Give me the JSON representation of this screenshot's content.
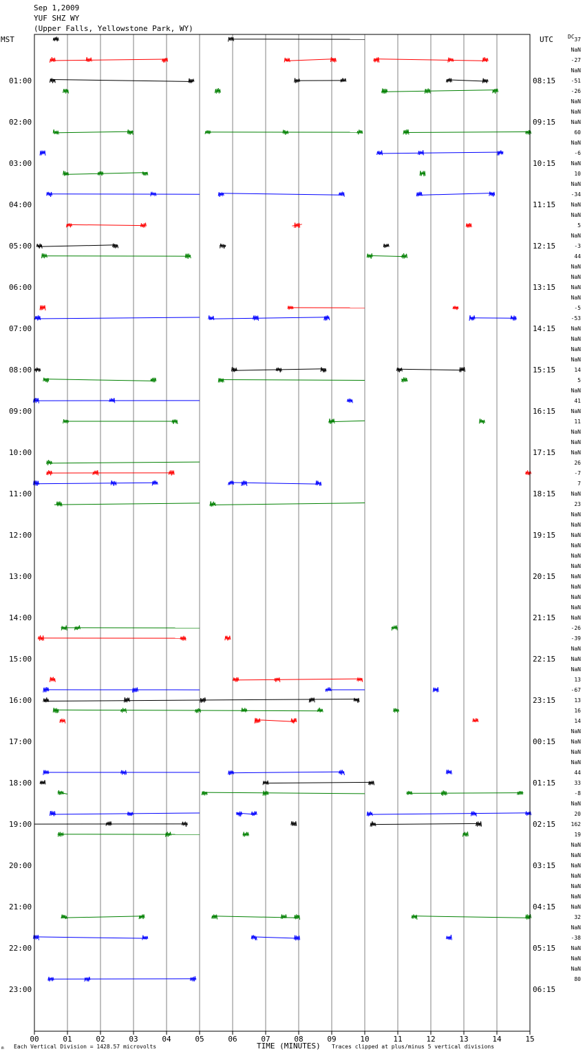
{
  "header": {
    "date": "Sep 1,2009",
    "station": "YUF SHZ WY",
    "location": "(Upper Falls, Yellowstone Park, WY)"
  },
  "labels": {
    "left_unit": "MST",
    "right_unit": "UTC",
    "dc": "DC",
    "xlabel": "TIME (MINUTES)",
    "scale_note": "Each Vertical Division = 1428.57 microvolts",
    "clip_note": "Traces clipped at plus/minus 5 vertical divisions"
  },
  "chart_data": {
    "type": "line",
    "title": "",
    "xlabel": "TIME (MINUTES)",
    "ylabel": "MST",
    "xlim": [
      0,
      15
    ],
    "grid": "vertical lines every minute",
    "x_ticks": [
      "00",
      "01",
      "02",
      "03",
      "04",
      "05",
      "06",
      "07",
      "08",
      "09",
      "10",
      "11",
      "12",
      "13",
      "14",
      "15"
    ],
    "left_ticks": [
      "01:00",
      "02:00",
      "03:00",
      "04:00",
      "05:00",
      "06:00",
      "07:00",
      "08:00",
      "09:00",
      "10:00",
      "11:00",
      "12:00",
      "13:00",
      "14:00",
      "15:00",
      "16:00",
      "17:00",
      "18:00",
      "19:00",
      "20:00",
      "21:00",
      "22:00",
      "23:00"
    ],
    "right_ticks": [
      "08:15",
      "09:15",
      "10:15",
      "11:15",
      "12:15",
      "13:15",
      "14:15",
      "15:15",
      "16:15",
      "17:15",
      "18:15",
      "19:15",
      "20:15",
      "21:15",
      "22:15",
      "23:15",
      "00:15",
      "01:15",
      "02:15",
      "03:15",
      "04:15",
      "05:15",
      "06:15"
    ],
    "row_colors": [
      "#000000",
      "#008000",
      "#ff0000",
      "#0000ff"
    ],
    "dc_offsets": [
      "37",
      "NaN",
      "-27",
      "NaN",
      "-51",
      "-26",
      "NaN",
      "NaN",
      "NaN",
      "60",
      "NaN",
      "-6",
      "NaN",
      "10",
      "NaN",
      "-34",
      "NaN",
      "NaN",
      "5",
      "NaN",
      "-3",
      "44",
      "NaN",
      "NaN",
      "NaN",
      "NaN",
      "-5",
      "-53",
      "NaN",
      "NaN",
      "NaN",
      "NaN",
      "14",
      "5",
      "NaN",
      "41",
      "NaN",
      "11",
      "NaN",
      "NaN",
      "NaN",
      "26",
      "-7",
      "7",
      "NaN",
      "23",
      "NaN",
      "NaN",
      "NaN",
      "NaN",
      "NaN",
      "NaN",
      "NaN",
      "NaN",
      "NaN",
      "NaN",
      "NaN",
      "-26",
      "-39",
      "NaN",
      "NaN",
      "NaN",
      "13",
      "-67",
      "13",
      "16",
      "14",
      "NaN",
      "NaN",
      "NaN",
      "NaN",
      "44",
      "33",
      "-8",
      "NaN",
      "20",
      "162",
      "19",
      "NaN",
      "NaN",
      "NaN",
      "NaN",
      "NaN",
      "NaN",
      "NaN",
      "32",
      "NaN",
      "-38",
      "NaN",
      "NaN",
      "NaN",
      "80"
    ],
    "traces": [
      {
        "row": 0,
        "segments": [
          [
            0.6,
            0.7
          ],
          [
            6.0,
            10.0
          ]
        ],
        "bursts": [
          0.65,
          5.95
        ]
      },
      {
        "row": 2,
        "segments": [
          [
            0.5,
            4.0
          ],
          [
            7.6,
            9.1
          ],
          [
            10.3,
            13.7
          ]
        ],
        "bursts": [
          0.55,
          1.65,
          3.95,
          7.65,
          9.05,
          10.35,
          12.6,
          13.65
        ]
      },
      {
        "row": 4,
        "segments": [
          [
            0.5,
            4.8
          ],
          [
            7.9,
            9.4
          ],
          [
            12.5,
            13.7
          ]
        ],
        "bursts": [
          0.55,
          4.75,
          7.95,
          9.35,
          12.55,
          13.65
        ]
      },
      {
        "row": 5,
        "segments": [
          [
            0.9,
            1.0
          ],
          [
            5.5,
            5.6
          ],
          [
            10.5,
            14.0
          ]
        ],
        "bursts": [
          0.95,
          5.55,
          10.6,
          11.9,
          13.95
        ]
      },
      {
        "row": 9,
        "segments": [
          [
            0.6,
            3.0
          ],
          [
            5.2,
            9.9
          ],
          [
            11.2,
            15.0
          ]
        ],
        "bursts": [
          0.65,
          2.9,
          5.25,
          7.6,
          9.85,
          11.25,
          14.95
        ]
      },
      {
        "row": 11,
        "segments": [
          [
            0.2,
            0.3
          ],
          [
            10.4,
            14.2
          ]
        ],
        "bursts": [
          0.25,
          10.45,
          11.7,
          14.1
        ]
      },
      {
        "row": 13,
        "segments": [
          [
            0.9,
            3.4
          ],
          [
            11.7,
            11.8
          ]
        ],
        "bursts": [
          0.95,
          2.0,
          3.35,
          11.75
        ]
      },
      {
        "row": 15,
        "segments": [
          [
            0.4,
            5.0
          ],
          [
            5.6,
            9.3
          ],
          [
            11.6,
            13.9
          ]
        ],
        "bursts": [
          0.45,
          3.6,
          5.65,
          9.3,
          11.65,
          13.85
        ]
      },
      {
        "row": 18,
        "segments": [
          [
            1.0,
            3.3
          ],
          [
            7.8,
            8.1
          ],
          [
            13.1,
            13.2
          ]
        ],
        "bursts": [
          1.05,
          3.3,
          7.95,
          13.15
        ]
      },
      {
        "row": 20,
        "segments": [
          [
            0.1,
            2.5
          ],
          [
            5.6,
            5.8
          ],
          [
            10.6,
            10.7
          ]
        ],
        "bursts": [
          0.15,
          2.45,
          5.7,
          10.65
        ]
      },
      {
        "row": 21,
        "segments": [
          [
            0.3,
            4.7
          ],
          [
            10.1,
            11.2
          ]
        ],
        "bursts": [
          0.3,
          4.65,
          10.15,
          11.2
        ]
      },
      {
        "row": 26,
        "segments": [
          [
            0.2,
            0.3
          ],
          [
            7.7,
            10.0
          ],
          [
            12.7,
            12.8
          ]
        ],
        "bursts": [
          0.25,
          7.75,
          12.75
        ]
      },
      {
        "row": 27,
        "segments": [
          [
            0.0,
            5.0
          ],
          [
            5.3,
            8.9
          ],
          [
            13.2,
            14.6
          ]
        ],
        "bursts": [
          0.1,
          5.35,
          6.7,
          8.85,
          13.25,
          14.5
        ]
      },
      {
        "row": 32,
        "segments": [
          [
            0.0,
            0.1
          ],
          [
            6.0,
            8.8
          ],
          [
            11.0,
            13.0
          ]
        ],
        "bursts": [
          0.1,
          6.05,
          7.4,
          8.75,
          11.05,
          12.95
        ]
      },
      {
        "row": 33,
        "segments": [
          [
            0.3,
            3.6
          ],
          [
            5.6,
            10.0
          ],
          [
            11.1,
            11.3
          ]
        ],
        "bursts": [
          0.35,
          3.6,
          5.65,
          11.2
        ]
      },
      {
        "row": 35,
        "segments": [
          [
            0.0,
            5.0
          ],
          [
            9.5,
            9.6
          ]
        ],
        "bursts": [
          0.05,
          2.35,
          9.55
        ]
      },
      {
        "row": 37,
        "segments": [
          [
            0.9,
            4.3
          ],
          [
            8.9,
            10.0
          ],
          [
            13.5,
            13.6
          ]
        ],
        "bursts": [
          0.95,
          4.25,
          9.0,
          13.55
        ]
      },
      {
        "row": 41,
        "segments": [
          [
            0.4,
            5.0
          ]
        ],
        "bursts": [
          0.45
        ]
      },
      {
        "row": 42,
        "segments": [
          [
            0.4,
            4.2
          ],
          [
            14.9,
            15.0
          ]
        ],
        "bursts": [
          0.45,
          1.85,
          4.15,
          14.95
        ]
      },
      {
        "row": 43,
        "segments": [
          [
            0.0,
            3.7
          ],
          [
            5.9,
            8.6
          ]
        ],
        "bursts": [
          0.05,
          2.4,
          3.65,
          5.95,
          6.35,
          8.6
        ]
      },
      {
        "row": 45,
        "segments": [
          [
            0.6,
            5.0
          ],
          [
            5.3,
            10.0
          ]
        ],
        "bursts": [
          0.75,
          5.4
        ]
      },
      {
        "row": 57,
        "segments": [
          [
            0.8,
            5.0
          ],
          [
            10.8,
            11.0
          ]
        ],
        "bursts": [
          0.9,
          1.3,
          10.9
        ]
      },
      {
        "row": 58,
        "segments": [
          [
            0.1,
            4.6
          ],
          [
            5.8,
            5.9
          ]
        ],
        "bursts": [
          0.2,
          4.5,
          5.85
        ]
      },
      {
        "row": 62,
        "segments": [
          [
            0.5,
            0.6
          ],
          [
            6.0,
            9.9
          ]
        ],
        "bursts": [
          0.55,
          6.1,
          7.35,
          9.85
        ]
      },
      {
        "row": 63,
        "segments": [
          [
            0.3,
            5.0
          ],
          [
            8.8,
            10.0
          ],
          [
            12.1,
            12.2
          ]
        ],
        "bursts": [
          0.35,
          3.05,
          8.9,
          12.15
        ]
      },
      {
        "row": 64,
        "segments": [
          [
            0.3,
            9.8
          ]
        ],
        "bursts": [
          0.35,
          2.8,
          5.1,
          8.4,
          9.75
        ]
      },
      {
        "row": 65,
        "segments": [
          [
            0.6,
            8.7
          ],
          [
            10.9,
            11.0
          ]
        ],
        "bursts": [
          0.65,
          2.7,
          4.95,
          6.35,
          8.65,
          10.95
        ]
      },
      {
        "row": 66,
        "segments": [
          [
            0.8,
            0.9
          ],
          [
            6.7,
            7.9
          ],
          [
            13.3,
            13.4
          ]
        ],
        "bursts": [
          0.85,
          6.75,
          7.85,
          13.35
        ]
      },
      {
        "row": 71,
        "segments": [
          [
            0.3,
            5.0
          ],
          [
            5.9,
            9.3
          ],
          [
            12.5,
            12.6
          ]
        ],
        "bursts": [
          0.35,
          2.7,
          5.95,
          9.3,
          12.55
        ]
      },
      {
        "row": 72,
        "segments": [
          [
            0.2,
            0.3
          ],
          [
            7.0,
            10.2
          ]
        ],
        "bursts": [
          0.25,
          7.0,
          10.2
        ]
      },
      {
        "row": 73,
        "segments": [
          [
            0.7,
            1.0
          ],
          [
            5.1,
            10.0
          ],
          [
            11.3,
            14.8
          ]
        ],
        "bursts": [
          0.8,
          5.15,
          7.0,
          11.35,
          12.4,
          14.7
        ]
      },
      {
        "row": 75,
        "segments": [
          [
            0.5,
            5.0
          ],
          [
            6.1,
            6.7
          ],
          [
            10.1,
            15.0
          ]
        ],
        "bursts": [
          0.55,
          2.9,
          6.2,
          6.65,
          10.15,
          13.3,
          14.95
        ]
      },
      {
        "row": 76,
        "segments": [
          [
            0.0,
            4.6
          ],
          [
            7.8,
            7.9
          ],
          [
            10.2,
            13.5
          ]
        ],
        "bursts": [
          2.25,
          4.55,
          7.85,
          10.25,
          13.45
        ]
      },
      {
        "row": 77,
        "segments": [
          [
            0.7,
            5.0
          ],
          [
            6.3,
            6.5
          ],
          [
            13.0,
            13.1
          ]
        ],
        "bursts": [
          0.8,
          4.05,
          6.4,
          13.05
        ]
      },
      {
        "row": 85,
        "segments": [
          [
            0.8,
            3.3
          ],
          [
            5.4,
            8.0
          ],
          [
            11.5,
            15.0
          ]
        ],
        "bursts": [
          0.9,
          3.25,
          5.45,
          7.55,
          7.95,
          11.5,
          14.95
        ]
      },
      {
        "row": 87,
        "segments": [
          [
            0.0,
            3.4
          ],
          [
            6.6,
            8.0
          ],
          [
            12.5,
            12.6
          ]
        ],
        "bursts": [
          0.05,
          3.35,
          6.65,
          7.95,
          12.55
        ]
      },
      {
        "row": 91,
        "segments": [
          [
            0.4,
            4.9
          ]
        ],
        "bursts": [
          0.5,
          1.6,
          4.8
        ]
      }
    ]
  }
}
